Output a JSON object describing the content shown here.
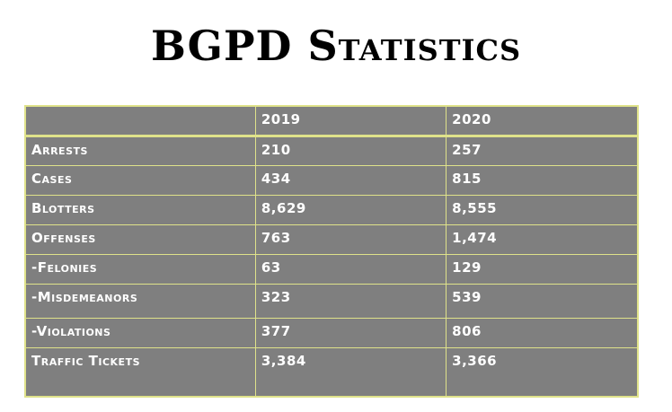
{
  "title": "BGPD Statistics",
  "table": {
    "headers": [
      "",
      "2019",
      "2020"
    ],
    "rows": [
      {
        "label": "Arrests",
        "y2019": "210",
        "y2020": "257"
      },
      {
        "label": "Cases",
        "y2019": "434",
        "y2020": "815"
      },
      {
        "label": "Blotters",
        "y2019": "8,629",
        "y2020": "8,555"
      },
      {
        "label": "Offenses",
        "y2019": "763",
        "y2020": "1,474"
      },
      {
        "label": "-Felonies",
        "y2019": "63",
        "y2020": "129"
      },
      {
        "label": "-Misdemeanors",
        "y2019": "323",
        "y2020": "539"
      },
      {
        "label": "-Violations",
        "y2019": "377",
        "y2020": "806"
      },
      {
        "label": "Traffic Tickets",
        "y2019": "3,384",
        "y2020": "3,366"
      }
    ]
  },
  "colors": {
    "cell_bg": "#7f7f7f",
    "border": "#dfe28a",
    "text": "#ffffff"
  }
}
